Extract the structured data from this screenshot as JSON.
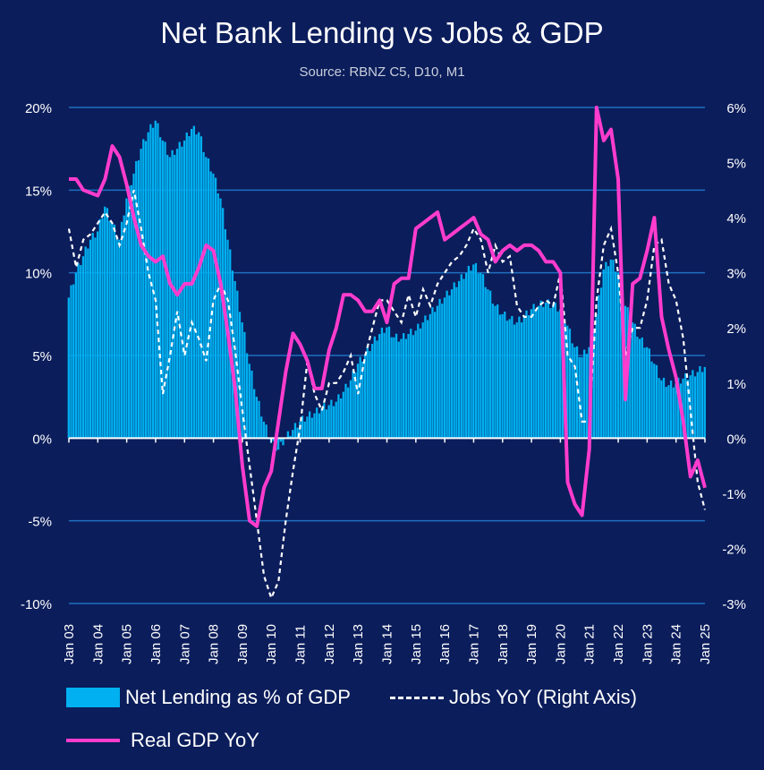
{
  "chart_data": {
    "type": "bar+line",
    "title": "Net Bank Lending vs Jobs & GDP",
    "subtitle": "Source: RBNZ C5, D10, M1",
    "left_axis": {
      "min": -10,
      "max": 20,
      "ticks": [
        "20%",
        "15%",
        "10%",
        "5%",
        "0%",
        "-5%",
        "-10%"
      ],
      "tick_values": [
        20,
        15,
        10,
        5,
        0,
        -5,
        -10
      ]
    },
    "right_axis": {
      "min": -3,
      "max": 6,
      "ticks": [
        "6%",
        "5%",
        "4%",
        "3%",
        "2%",
        "1%",
        "0%",
        "-1%",
        "-2%",
        "-3%"
      ],
      "tick_values": [
        6,
        5,
        4,
        3,
        2,
        1,
        0,
        -1,
        -2,
        -3
      ]
    },
    "x_ticks": [
      "Jan 03",
      "Jan 04",
      "Jan 05",
      "Jan 06",
      "Jan 07",
      "Jan 08",
      "Jan 09",
      "Jan 10",
      "Jan 11",
      "Jan 12",
      "Jan 13",
      "Jan 14",
      "Jan 15",
      "Jan 16",
      "Jan 17",
      "Jan 18",
      "Jan 19",
      "Jan 20",
      "Jan 21",
      "Jan 22",
      "Jan 23",
      "Jan 24",
      "Jan 25"
    ],
    "colors": {
      "background": "#0b1d5b",
      "bars": "#00b0f0",
      "jobs": "#ffffff",
      "gdp": "#ff3ccd",
      "grid": "#1f6fbf"
    },
    "series": [
      {
        "name": "Net Lending as % of GDP",
        "axis": "left",
        "kind": "bar",
        "points": [
          [
            2003.0,
            8.5
          ],
          [
            2003.25,
            10
          ],
          [
            2003.5,
            11
          ],
          [
            2003.75,
            12
          ],
          [
            2004.0,
            12.5
          ],
          [
            2004.25,
            14
          ],
          [
            2004.5,
            13
          ],
          [
            2004.75,
            12
          ],
          [
            2005.0,
            14.5
          ],
          [
            2005.25,
            16
          ],
          [
            2005.5,
            17.5
          ],
          [
            2005.75,
            18.5
          ],
          [
            2006.0,
            19.2
          ],
          [
            2006.25,
            18
          ],
          [
            2006.5,
            17
          ],
          [
            2006.75,
            17.5
          ],
          [
            2007.0,
            18
          ],
          [
            2007.25,
            18.7
          ],
          [
            2007.5,
            18.5
          ],
          [
            2007.75,
            17
          ],
          [
            2008.0,
            16
          ],
          [
            2008.25,
            14.5
          ],
          [
            2008.5,
            12
          ],
          [
            2008.75,
            9.5
          ],
          [
            2009.0,
            7
          ],
          [
            2009.25,
            4.5
          ],
          [
            2009.5,
            2.5
          ],
          [
            2009.75,
            1
          ],
          [
            2010.0,
            -0.3
          ],
          [
            2010.25,
            -0.7
          ],
          [
            2010.5,
            0
          ],
          [
            2010.75,
            0.5
          ],
          [
            2011.0,
            1
          ],
          [
            2011.25,
            1.3
          ],
          [
            2011.5,
            1.5
          ],
          [
            2011.75,
            1.8
          ],
          [
            2012.0,
            2
          ],
          [
            2012.25,
            2.2
          ],
          [
            2012.5,
            2.8
          ],
          [
            2012.75,
            3.5
          ],
          [
            2013.0,
            4.5
          ],
          [
            2013.25,
            5
          ],
          [
            2013.5,
            5.7
          ],
          [
            2013.75,
            6.3
          ],
          [
            2014.0,
            6.7
          ],
          [
            2014.25,
            6.1
          ],
          [
            2014.5,
            6
          ],
          [
            2014.75,
            6.3
          ],
          [
            2015.0,
            6.5
          ],
          [
            2015.25,
            7
          ],
          [
            2015.5,
            7.5
          ],
          [
            2015.75,
            8
          ],
          [
            2016.0,
            8.5
          ],
          [
            2016.25,
            9
          ],
          [
            2016.5,
            9.5
          ],
          [
            2016.75,
            10
          ],
          [
            2017.0,
            10.5
          ],
          [
            2017.25,
            10
          ],
          [
            2017.5,
            9
          ],
          [
            2017.75,
            8
          ],
          [
            2018.0,
            7.5
          ],
          [
            2018.25,
            7.2
          ],
          [
            2018.5,
            7
          ],
          [
            2018.75,
            7.3
          ],
          [
            2019.0,
            7.8
          ],
          [
            2019.25,
            8
          ],
          [
            2019.5,
            8.2
          ],
          [
            2019.75,
            8
          ],
          [
            2020.0,
            7.8
          ],
          [
            2020.25,
            6.8
          ],
          [
            2020.5,
            5.5
          ],
          [
            2020.75,
            4.9
          ],
          [
            2021.0,
            5.5
          ],
          [
            2021.25,
            7.5
          ],
          [
            2021.5,
            10.2
          ],
          [
            2021.75,
            10.8
          ],
          [
            2022.0,
            10
          ],
          [
            2022.25,
            8
          ],
          [
            2022.5,
            7
          ],
          [
            2022.75,
            6
          ],
          [
            2023.0,
            5.5
          ],
          [
            2023.25,
            4.5
          ],
          [
            2023.5,
            3.5
          ],
          [
            2023.75,
            3.2
          ],
          [
            2024.0,
            3.3
          ],
          [
            2024.25,
            3.6
          ],
          [
            2024.5,
            3.8
          ],
          [
            2024.75,
            4
          ],
          [
            2025.0,
            4.3
          ]
        ]
      },
      {
        "name": "Jobs YoY (Right  Axis)",
        "axis": "right",
        "kind": "dashed-line",
        "points": [
          [
            2003.0,
            3.8
          ],
          [
            2003.25,
            3.1
          ],
          [
            2003.5,
            3.6
          ],
          [
            2003.75,
            3.7
          ],
          [
            2004.0,
            3.9
          ],
          [
            2004.25,
            4.1
          ],
          [
            2004.5,
            3.9
          ],
          [
            2004.75,
            3.5
          ],
          [
            2005.0,
            3.9
          ],
          [
            2005.25,
            4.5
          ],
          [
            2005.5,
            3.8
          ],
          [
            2005.75,
            3.0
          ],
          [
            2006.0,
            2.5
          ],
          [
            2006.25,
            0.8
          ],
          [
            2006.5,
            1.5
          ],
          [
            2006.75,
            2.3
          ],
          [
            2007.0,
            1.5
          ],
          [
            2007.25,
            2.1
          ],
          [
            2007.5,
            1.8
          ],
          [
            2007.75,
            1.4
          ],
          [
            2008.0,
            2.5
          ],
          [
            2008.25,
            2.8
          ],
          [
            2008.5,
            2.5
          ],
          [
            2008.75,
            1.6
          ],
          [
            2009.0,
            0.5
          ],
          [
            2009.25,
            -0.5
          ],
          [
            2009.5,
            -1.5
          ],
          [
            2009.75,
            -2.5
          ],
          [
            2010.0,
            -2.9
          ],
          [
            2010.25,
            -2.6
          ],
          [
            2010.5,
            -1.5
          ],
          [
            2010.75,
            -0.6
          ],
          [
            2011.0,
            0.2
          ],
          [
            2011.25,
            1.4
          ],
          [
            2011.5,
            0.8
          ],
          [
            2011.75,
            0.5
          ],
          [
            2012.0,
            1.0
          ],
          [
            2012.25,
            1.0
          ],
          [
            2012.5,
            1.2
          ],
          [
            2012.75,
            1.5
          ],
          [
            2013.0,
            0.8
          ],
          [
            2013.25,
            1.5
          ],
          [
            2013.5,
            2.0
          ],
          [
            2013.75,
            2.5
          ],
          [
            2014.0,
            2.5
          ],
          [
            2014.25,
            2.3
          ],
          [
            2014.5,
            2.1
          ],
          [
            2014.75,
            2.6
          ],
          [
            2015.0,
            2.2
          ],
          [
            2015.25,
            2.7
          ],
          [
            2015.5,
            2.4
          ],
          [
            2015.75,
            2.8
          ],
          [
            2016.0,
            3.0
          ],
          [
            2016.25,
            3.2
          ],
          [
            2016.5,
            3.3
          ],
          [
            2016.75,
            3.5
          ],
          [
            2017.0,
            3.8
          ],
          [
            2017.25,
            3.6
          ],
          [
            2017.5,
            3.0
          ],
          [
            2017.75,
            3.5
          ],
          [
            2018.0,
            3.2
          ],
          [
            2018.25,
            3.3
          ],
          [
            2018.5,
            2.4
          ],
          [
            2018.75,
            2.2
          ],
          [
            2019.0,
            2.2
          ],
          [
            2019.25,
            2.4
          ],
          [
            2019.5,
            2.5
          ],
          [
            2019.75,
            2.4
          ],
          [
            2020.0,
            3.0
          ],
          [
            2020.25,
            1.5
          ],
          [
            2020.5,
            1.3
          ],
          [
            2020.75,
            0.3
          ],
          [
            2021.0,
            0.3
          ],
          [
            2021.25,
            2.5
          ],
          [
            2021.5,
            3.5
          ],
          [
            2021.75,
            3.8
          ],
          [
            2022.0,
            3.0
          ],
          [
            2022.25,
            1.5
          ],
          [
            2022.5,
            2.0
          ],
          [
            2022.75,
            2.0
          ],
          [
            2023.0,
            2.5
          ],
          [
            2023.25,
            3.5
          ],
          [
            2023.5,
            3.6
          ],
          [
            2023.75,
            2.8
          ],
          [
            2024.0,
            2.5
          ],
          [
            2024.25,
            1.8
          ],
          [
            2024.5,
            0.5
          ],
          [
            2024.75,
            -0.8
          ],
          [
            2025.0,
            -1.3
          ]
        ]
      },
      {
        "name": "Real GDP YoY",
        "axis": "right",
        "kind": "line",
        "points": [
          [
            2003.0,
            4.7
          ],
          [
            2003.25,
            4.7
          ],
          [
            2003.5,
            4.5
          ],
          [
            2003.75,
            4.45
          ],
          [
            2004.0,
            4.4
          ],
          [
            2004.25,
            4.7
          ],
          [
            2004.5,
            5.3
          ],
          [
            2004.75,
            5.1
          ],
          [
            2005.0,
            4.6
          ],
          [
            2005.25,
            4.0
          ],
          [
            2005.5,
            3.5
          ],
          [
            2005.75,
            3.3
          ],
          [
            2006.0,
            3.2
          ],
          [
            2006.25,
            3.3
          ],
          [
            2006.5,
            2.8
          ],
          [
            2006.75,
            2.6
          ],
          [
            2007.0,
            2.8
          ],
          [
            2007.25,
            2.8
          ],
          [
            2007.5,
            3.1
          ],
          [
            2007.75,
            3.5
          ],
          [
            2008.0,
            3.4
          ],
          [
            2008.25,
            2.8
          ],
          [
            2008.5,
            1.9
          ],
          [
            2008.75,
            0.9
          ],
          [
            2009.0,
            -0.5
          ],
          [
            2009.25,
            -1.5
          ],
          [
            2009.5,
            -1.6
          ],
          [
            2009.75,
            -0.9
          ],
          [
            2010.0,
            -0.6
          ],
          [
            2010.25,
            0.3
          ],
          [
            2010.5,
            1.2
          ],
          [
            2010.75,
            1.9
          ],
          [
            2011.0,
            1.7
          ],
          [
            2011.25,
            1.4
          ],
          [
            2011.5,
            0.9
          ],
          [
            2011.75,
            0.9
          ],
          [
            2012.0,
            1.6
          ],
          [
            2012.25,
            2.0
          ],
          [
            2012.5,
            2.6
          ],
          [
            2012.75,
            2.6
          ],
          [
            2013.0,
            2.5
          ],
          [
            2013.25,
            2.3
          ],
          [
            2013.5,
            2.3
          ],
          [
            2013.75,
            2.5
          ],
          [
            2014.0,
            2.1
          ],
          [
            2014.25,
            2.8
          ],
          [
            2014.5,
            2.9
          ],
          [
            2014.75,
            2.9
          ],
          [
            2015.0,
            3.8
          ],
          [
            2015.25,
            3.9
          ],
          [
            2015.5,
            4.0
          ],
          [
            2015.75,
            4.1
          ],
          [
            2016.0,
            3.6
          ],
          [
            2016.25,
            3.7
          ],
          [
            2016.5,
            3.8
          ],
          [
            2016.75,
            3.9
          ],
          [
            2017.0,
            4.0
          ],
          [
            2017.25,
            3.7
          ],
          [
            2017.5,
            3.6
          ],
          [
            2017.75,
            3.2
          ],
          [
            2018.0,
            3.4
          ],
          [
            2018.25,
            3.5
          ],
          [
            2018.5,
            3.4
          ],
          [
            2018.75,
            3.5
          ],
          [
            2019.0,
            3.5
          ],
          [
            2019.25,
            3.4
          ],
          [
            2019.5,
            3.2
          ],
          [
            2019.75,
            3.2
          ],
          [
            2020.0,
            3.0
          ],
          [
            2020.25,
            -0.8
          ],
          [
            2020.5,
            -1.2
          ],
          [
            2020.75,
            -1.4
          ],
          [
            2021.0,
            -0.2
          ],
          [
            2021.25,
            6.0
          ],
          [
            2021.5,
            5.4
          ],
          [
            2021.75,
            5.6
          ],
          [
            2022.0,
            4.7
          ],
          [
            2022.25,
            0.7
          ],
          [
            2022.5,
            2.8
          ],
          [
            2022.75,
            2.9
          ],
          [
            2023.0,
            3.4
          ],
          [
            2023.25,
            4.0
          ],
          [
            2023.5,
            2.2
          ],
          [
            2023.75,
            1.6
          ],
          [
            2024.0,
            1.1
          ],
          [
            2024.25,
            0.3
          ],
          [
            2024.5,
            -0.7
          ],
          [
            2024.75,
            -0.4
          ],
          [
            2025.0,
            -0.9
          ]
        ]
      }
    ],
    "legend": {
      "placement": "bottom"
    }
  }
}
